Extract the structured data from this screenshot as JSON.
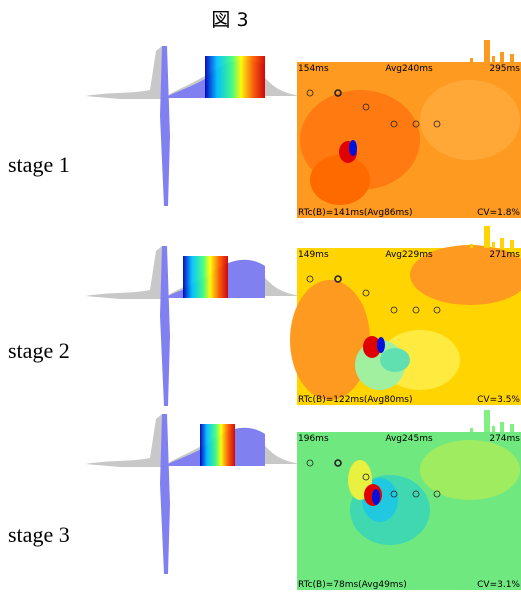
{
  "title": "図 3",
  "panels": [
    {
      "stage": "stage 1",
      "min": "154ms",
      "avg": "Avg240ms",
      "max": "295ms",
      "rtc": "RTc(B)=141ms(Avg86ms)",
      "cv": "CV=1.8%"
    },
    {
      "stage": "stage 2",
      "min": "149ms",
      "avg": "Avg229ms",
      "max": "271ms",
      "rtc": "RTc(B)=122ms(Avg80ms)",
      "cv": "CV=3.5%"
    },
    {
      "stage": "stage 3",
      "min": "196ms",
      "avg": "Avg245ms",
      "max": "274ms",
      "rtc": "RTc(B)=78ms(Avg49ms)",
      "cv": "CV=3.1%"
    }
  ]
}
